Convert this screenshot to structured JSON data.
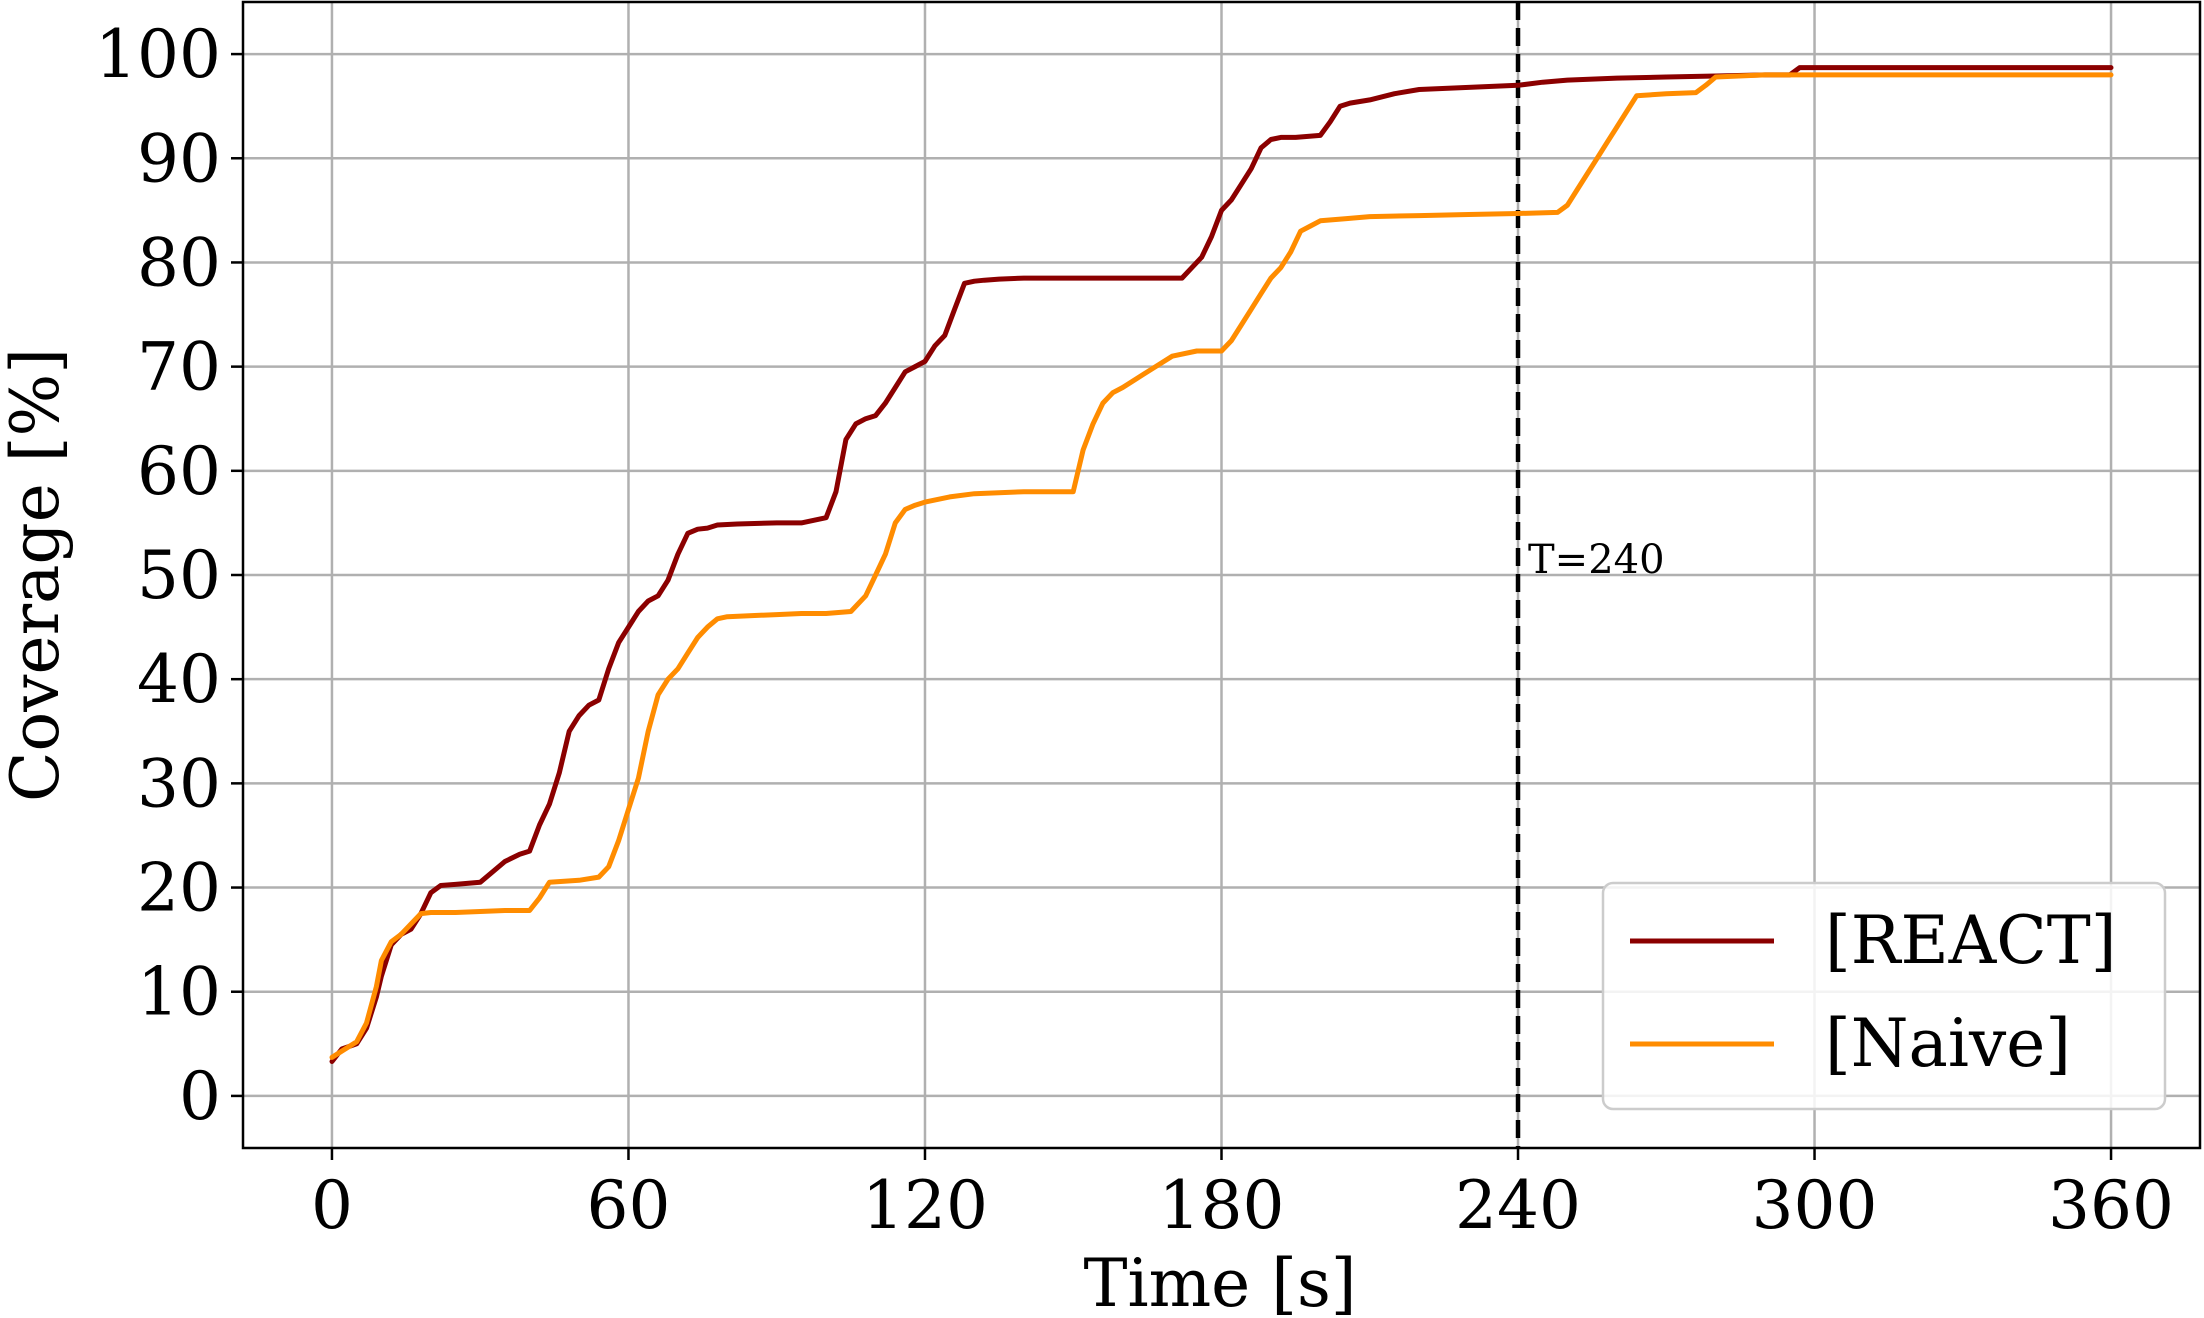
{
  "chart_data": {
    "type": "line",
    "title": "",
    "xlabel": "Time [s]",
    "ylabel": "Coverage [%]",
    "xlim": [
      -18,
      378
    ],
    "ylim": [
      -5,
      105
    ],
    "xticks": [
      0,
      60,
      120,
      180,
      240,
      300,
      360
    ],
    "yticks": [
      0,
      10,
      20,
      30,
      40,
      50,
      60,
      70,
      80,
      90,
      100
    ],
    "grid": true,
    "legend": {
      "placement": "lower-right"
    },
    "vline": {
      "x": 240,
      "style": "dashed",
      "color": "#000000",
      "label": "T=240"
    },
    "series": [
      {
        "name": "[REACT]",
        "color": "#8b0000",
        "x": [
          0,
          2,
          5,
          7,
          9,
          10,
          12,
          14,
          16,
          18,
          20,
          22,
          25,
          30,
          35,
          38,
          40,
          42,
          44,
          46,
          48,
          50,
          52,
          54,
          56,
          58,
          60,
          62,
          64,
          66,
          68,
          70,
          72,
          74,
          76,
          78,
          82,
          90,
          95,
          100,
          102,
          104,
          106,
          108,
          110,
          112,
          114,
          116,
          118,
          120,
          122,
          124,
          126,
          128,
          130,
          132,
          135,
          140,
          150,
          160,
          172,
          174,
          176,
          178,
          180,
          182,
          184,
          186,
          188,
          190,
          192,
          195,
          200,
          202,
          204,
          206,
          210,
          215,
          220,
          230,
          240,
          245,
          250,
          260,
          270,
          280,
          290,
          295,
          297,
          300,
          360
        ],
        "y": [
          3.3,
          4.5,
          5.0,
          6.5,
          9.5,
          11.5,
          14.5,
          15.5,
          16.0,
          17.5,
          19.5,
          20.2,
          20.3,
          20.5,
          22.5,
          23.2,
          23.5,
          26.0,
          28.0,
          31.0,
          35.0,
          36.5,
          37.5,
          38.0,
          41.0,
          43.5,
          45.0,
          46.5,
          47.5,
          48.0,
          49.5,
          52.0,
          54.0,
          54.4,
          54.5,
          54.8,
          54.9,
          55.0,
          55.0,
          55.5,
          58.0,
          63.0,
          64.5,
          65.0,
          65.3,
          66.5,
          68.0,
          69.5,
          70.0,
          70.5,
          72.0,
          73.0,
          75.5,
          78.0,
          78.2,
          78.3,
          78.4,
          78.5,
          78.5,
          78.5,
          78.5,
          79.5,
          80.5,
          82.5,
          85.0,
          86.0,
          87.5,
          89.0,
          91.0,
          91.8,
          92.0,
          92.0,
          92.2,
          93.5,
          95.0,
          95.3,
          95.6,
          96.2,
          96.6,
          96.8,
          97.0,
          97.3,
          97.5,
          97.7,
          97.8,
          97.9,
          98.0,
          98.0,
          98.7,
          98.7,
          98.7
        ]
      },
      {
        "name": "[Naive]",
        "color": "#ff8c00",
        "x": [
          0,
          2,
          5,
          7,
          9,
          10,
          12,
          14,
          16,
          18,
          20,
          25,
          30,
          35,
          40,
          42,
          44,
          50,
          54,
          56,
          58,
          60,
          62,
          64,
          66,
          68,
          70,
          72,
          74,
          76,
          78,
          80,
          85,
          90,
          95,
          100,
          105,
          108,
          110,
          112,
          114,
          116,
          118,
          120,
          125,
          130,
          140,
          150,
          152,
          154,
          156,
          158,
          160,
          165,
          170,
          175,
          180,
          182,
          184,
          186,
          188,
          190,
          192,
          194,
          196,
          198,
          200,
          205,
          210,
          220,
          230,
          240,
          248,
          250,
          252,
          254,
          256,
          258,
          260,
          262,
          264,
          270,
          276,
          278,
          280,
          290,
          300,
          360
        ],
        "y": [
          3.7,
          4.3,
          5.2,
          7.0,
          10.5,
          13.0,
          14.8,
          15.5,
          16.5,
          17.5,
          17.6,
          17.6,
          17.7,
          17.8,
          17.8,
          19.0,
          20.5,
          20.7,
          21.0,
          22.0,
          24.5,
          27.5,
          30.5,
          35.0,
          38.5,
          40.0,
          41.0,
          42.5,
          44.0,
          45.0,
          45.8,
          46.0,
          46.1,
          46.2,
          46.3,
          46.3,
          46.5,
          48.0,
          50.0,
          52.0,
          55.0,
          56.3,
          56.7,
          57.0,
          57.5,
          57.8,
          58.0,
          58.0,
          62.0,
          64.5,
          66.5,
          67.5,
          68.0,
          69.5,
          71.0,
          71.5,
          71.5,
          72.5,
          74.0,
          75.5,
          77.0,
          78.5,
          79.5,
          81.0,
          83.0,
          83.5,
          84.0,
          84.2,
          84.4,
          84.5,
          84.6,
          84.7,
          84.8,
          85.5,
          87.0,
          88.5,
          90.0,
          91.5,
          93.0,
          94.5,
          96.0,
          96.2,
          96.3,
          97.0,
          97.8,
          98.0,
          98.0,
          98.0
        ]
      }
    ]
  }
}
